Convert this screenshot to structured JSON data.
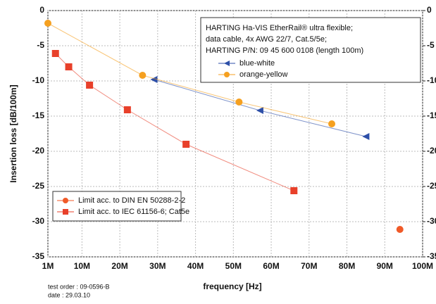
{
  "chart_data": {
    "type": "line",
    "x_label": "frequency [Hz]",
    "y_label": "Insertion loss [dB/100m]",
    "legend_title_lines": [
      "HARTING Ha-VIS EtherRail® ultra flexible;",
      "data cable, 4x AWG 22/7, Cat.5/5e;",
      "HARTING P/N: 09 45 600 0108 (length 100m)"
    ],
    "footnotes": [
      "test order : 09-0596-B",
      "date : 29.03.10"
    ],
    "xlim": [
      1,
      100
    ],
    "xticks": [
      {
        "value": 1,
        "label": "1M"
      },
      {
        "value": 10,
        "label": "10M"
      },
      {
        "value": 20,
        "label": "20M"
      },
      {
        "value": 30,
        "label": "30M"
      },
      {
        "value": 40,
        "label": "40M"
      },
      {
        "value": 50,
        "label": "50M"
      },
      {
        "value": 60,
        "label": "60M"
      },
      {
        "value": 70,
        "label": "70M"
      },
      {
        "value": 80,
        "label": "80M"
      },
      {
        "value": 90,
        "label": "90M"
      },
      {
        "value": 100,
        "label": "100M"
      }
    ],
    "ylim": [
      -35,
      0
    ],
    "yticks": [
      0,
      -5,
      -10,
      -15,
      -20,
      -25,
      -30,
      -35
    ],
    "y2lim": [
      -35,
      0
    ],
    "y2ticks": [
      0,
      -5,
      -10,
      -15,
      -20,
      -25,
      -30,
      -35
    ],
    "grid": true,
    "series": [
      {
        "name": "blue-white",
        "color": "#2d4fa8",
        "marker": "triangle",
        "x": [
          29,
          57,
          85
        ],
        "values": [
          -9.8,
          -14.2,
          -17.9
        ]
      },
      {
        "name": "orange-yellow",
        "color": "#f5a020",
        "marker": "circle",
        "x": [
          1,
          26,
          51.5,
          76
        ],
        "values": [
          -1.8,
          -9.2,
          -13,
          -16.1
        ]
      },
      {
        "name": "Limit acc. to DIN EN 50288-2-2",
        "color": "#f05a28",
        "marker": "circle",
        "x": [
          94
        ],
        "values": [
          -31.1
        ]
      },
      {
        "name": "Limit acc. to IEC 61156-6; Cat5e",
        "color": "#e8402a",
        "marker": "square",
        "x": [
          3,
          6.5,
          12,
          22,
          37.5,
          66
        ],
        "values": [
          -6.1,
          -8,
          -10.6,
          -14.1,
          -19,
          -25.6
        ]
      }
    ]
  }
}
